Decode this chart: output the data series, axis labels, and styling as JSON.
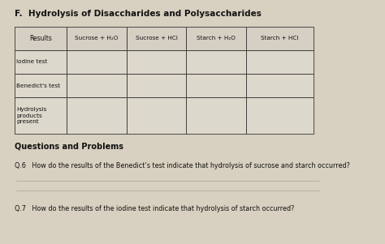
{
  "title": "F.  Hydrolysis of Disaccharides and Polysaccharides",
  "col_headers": [
    "Results",
    "Sucrose + H₂O",
    "Sucrose + HCl",
    "Starch + H₂O",
    "Starch + HCl"
  ],
  "row_labels": [
    "Iodine test",
    "Benedict's test",
    "Hydrolysis\nproducts\npresent"
  ],
  "questions_header": "Questions and Problems",
  "q6": "Q.6   How do the results of the Benedict’s test indicate that hydrolysis of sucrose and starch occurred?",
  "q7": "Q.7   How do the results of the iodine test indicate that hydrolysis of starch occurred?",
  "bg_color": "#d8d0c0",
  "header_fc": "#d5cfc4",
  "cell_fc": "#ddd8cc",
  "border_color": "#333333",
  "text_color": "#111111",
  "line_color": "#999988"
}
